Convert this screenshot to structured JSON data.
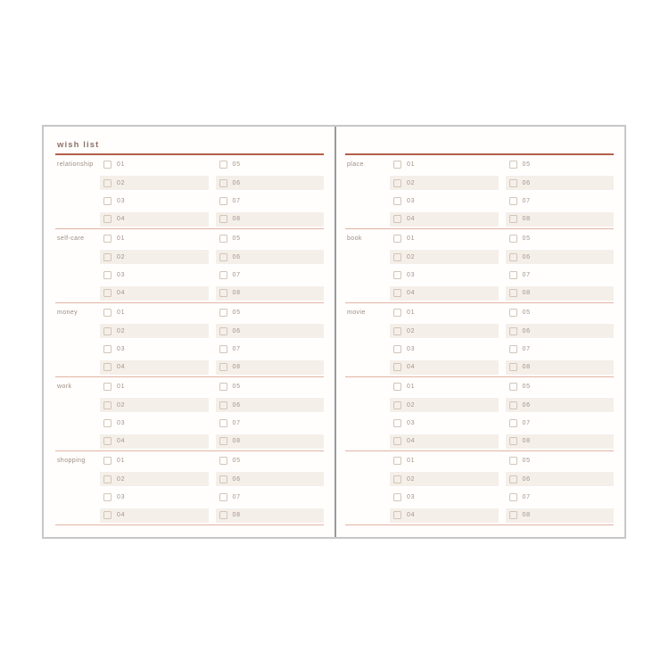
{
  "palette": {
    "page_border": "#c7c7c7",
    "spine": "#9a9a9a",
    "page_bg": "#fffefd",
    "title_underline": "#b5604a",
    "section_divider": "#e2b3a3",
    "stripe_bg": "#f5efe9",
    "title_text": "#8d7266",
    "label_text": "#9c8c80",
    "number_text": "#a29287",
    "checkbox_border": "#d2c5b7"
  },
  "row_numbers": {
    "col1": [
      "01",
      "02",
      "03",
      "04"
    ],
    "col2": [
      "05",
      "06",
      "07",
      "08"
    ]
  },
  "pages": [
    {
      "name": "left",
      "title": "wish list",
      "sections": [
        {
          "label": "relationship"
        },
        {
          "label": "self-care"
        },
        {
          "label": "money"
        },
        {
          "label": "work"
        },
        {
          "label": "shopping"
        }
      ]
    },
    {
      "name": "right",
      "title": "",
      "sections": [
        {
          "label": "place"
        },
        {
          "label": "book"
        },
        {
          "label": "movie"
        },
        {
          "label": ""
        },
        {
          "label": ""
        }
      ]
    }
  ]
}
